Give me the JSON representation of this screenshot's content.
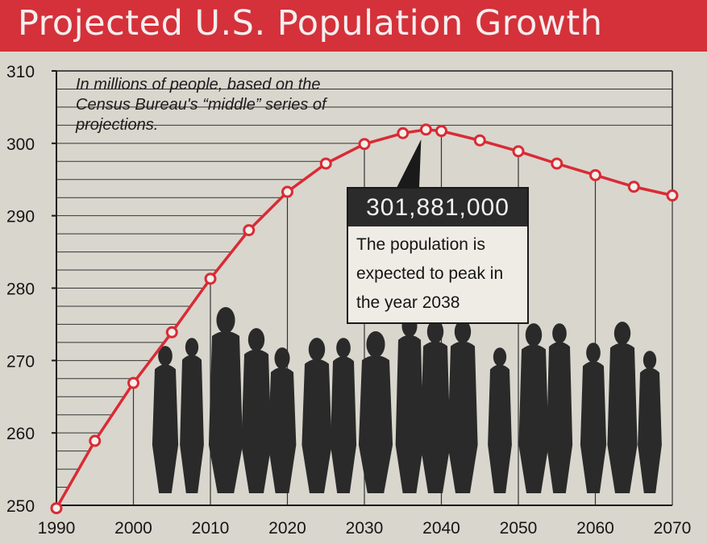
{
  "header": {
    "title": "Projected U.S. Population Growth"
  },
  "note": {
    "text": "In millions of people, based on the Census Bureau's “middle” series of projections."
  },
  "callout": {
    "value": "301,881,000",
    "text": "The population is expected to peak in the year 2038"
  },
  "colors": {
    "banner": "#d4313a",
    "line": "#d92b35",
    "background": "#d9d6ce"
  },
  "chart_data": {
    "type": "line",
    "title": "Projected U.S. Population Growth",
    "xlabel": "",
    "ylabel": "",
    "xlim": [
      1990,
      2070
    ],
    "ylim": [
      250,
      310
    ],
    "x_ticks": [
      1990,
      2000,
      2010,
      2020,
      2030,
      2040,
      2050,
      2060,
      2070
    ],
    "y_ticks": [
      250,
      260,
      270,
      280,
      290,
      300,
      310
    ],
    "series": [
      {
        "x": [
          1990,
          1995,
          2000,
          2005,
          2010,
          2015,
          2020,
          2025,
          2030,
          2035,
          2038,
          2040,
          2045,
          2050,
          2055,
          2060,
          2065,
          2070
        ],
        "values": [
          249.6,
          258.9,
          266.9,
          273.9,
          281.3,
          288.0,
          293.3,
          297.2,
          299.9,
          301.4,
          301.9,
          301.7,
          300.4,
          298.9,
          297.2,
          295.6,
          294.0,
          292.8
        ]
      }
    ],
    "annotation": {
      "x": 2038,
      "value": 301.881,
      "label": "301,881,000"
    },
    "grid": true,
    "legend": "none"
  }
}
